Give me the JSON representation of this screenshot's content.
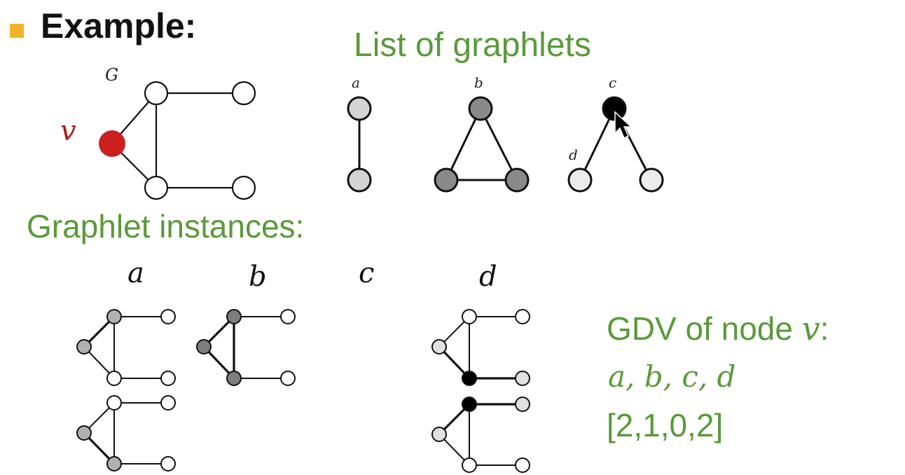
{
  "header": {
    "bullet_color": "#f0b429",
    "title": "Example:"
  },
  "graph": {
    "name": "G",
    "node_label": "v",
    "highlight_color": "#cc1f1f"
  },
  "graphlet_list": {
    "title": "List of graphlets",
    "labels": {
      "a": "a",
      "b": "b",
      "c": "c",
      "d": "d"
    }
  },
  "instances": {
    "title": "Graphlet instances:",
    "column_labels": [
      "a",
      "b",
      "c",
      "d"
    ]
  },
  "gdv": {
    "title_prefix": "GDV of node ",
    "title_var": "v",
    "title_suffix": ":",
    "labels": "a, b, c, d",
    "vector": "[2,1,0,2]"
  },
  "colors": {
    "green": "#5a9a3a",
    "light_gray": "#d4d4d4",
    "mid_gray": "#8a8a8a",
    "black": "#000000"
  },
  "cursor": {
    "icon": "arrow-cursor-icon"
  }
}
